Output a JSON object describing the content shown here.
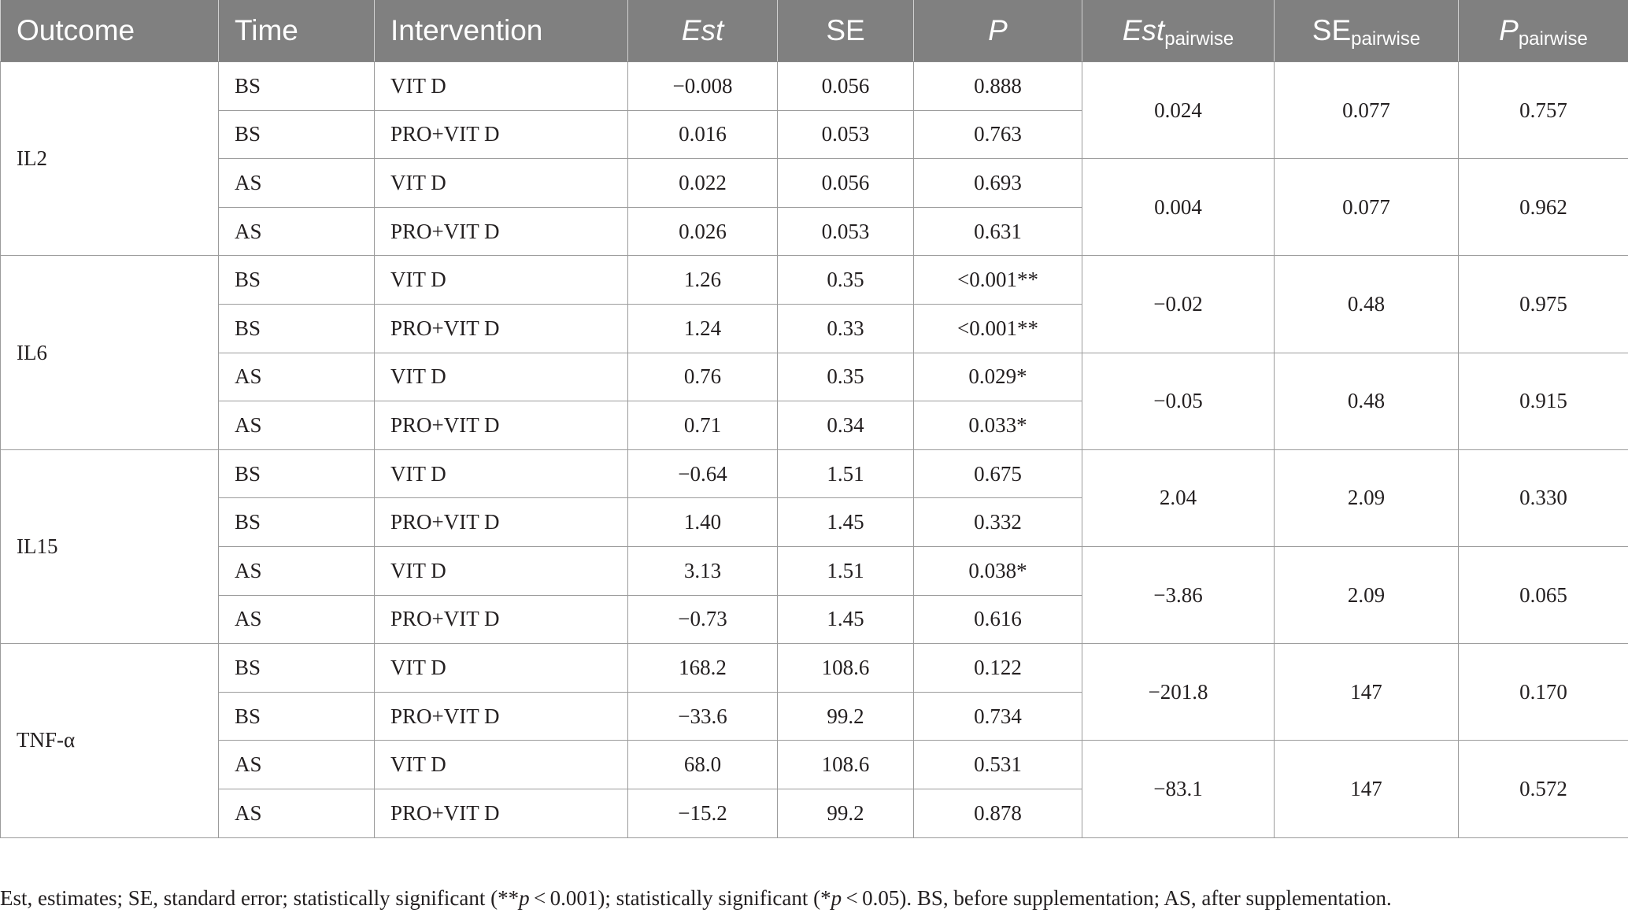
{
  "table": {
    "headers": {
      "outcome": "Outcome",
      "time": "Time",
      "intervention": "Intervention",
      "est": "Est",
      "se": "SE",
      "p": "P",
      "est_pairwise_main": "Est",
      "est_pairwise_sub": "pairwise",
      "se_pairwise_main": "SE",
      "se_pairwise_sub": "pairwise",
      "p_pairwise_main": "P",
      "p_pairwise_sub": "pairwise"
    },
    "groups": [
      {
        "outcome": "IL2",
        "rows": [
          {
            "time": "BS",
            "intervention": "VIT D",
            "est": "−0.008",
            "se": "0.056",
            "p": "0.888"
          },
          {
            "time": "BS",
            "intervention": "PRO+VIT D",
            "est": "0.016",
            "se": "0.053",
            "p": "0.763"
          },
          {
            "time": "AS",
            "intervention": "VIT D",
            "est": "0.022",
            "se": "0.056",
            "p": "0.693"
          },
          {
            "time": "AS",
            "intervention": "PRO+VIT D",
            "est": "0.026",
            "se": "0.053",
            "p": "0.631"
          }
        ],
        "pairwise": [
          {
            "est": "0.024",
            "se": "0.077",
            "p": "0.757"
          },
          {
            "est": "0.004",
            "se": "0.077",
            "p": "0.962"
          }
        ]
      },
      {
        "outcome": "IL6",
        "rows": [
          {
            "time": "BS",
            "intervention": "VIT D",
            "est": "1.26",
            "se": "0.35",
            "p": "<0.001**"
          },
          {
            "time": "BS",
            "intervention": "PRO+VIT D",
            "est": "1.24",
            "se": "0.33",
            "p": "<0.001**"
          },
          {
            "time": "AS",
            "intervention": "VIT D",
            "est": "0.76",
            "se": "0.35",
            "p": "0.029*"
          },
          {
            "time": "AS",
            "intervention": "PRO+VIT D",
            "est": "0.71",
            "se": "0.34",
            "p": "0.033*"
          }
        ],
        "pairwise": [
          {
            "est": "−0.02",
            "se": "0.48",
            "p": "0.975"
          },
          {
            "est": "−0.05",
            "se": "0.48",
            "p": "0.915"
          }
        ]
      },
      {
        "outcome": "IL15",
        "rows": [
          {
            "time": "BS",
            "intervention": "VIT D",
            "est": "−0.64",
            "se": "1.51",
            "p": "0.675"
          },
          {
            "time": "BS",
            "intervention": "PRO+VIT D",
            "est": "1.40",
            "se": "1.45",
            "p": "0.332"
          },
          {
            "time": "AS",
            "intervention": "VIT D",
            "est": "3.13",
            "se": "1.51",
            "p": "0.038*"
          },
          {
            "time": "AS",
            "intervention": "PRO+VIT D",
            "est": "−0.73",
            "se": "1.45",
            "p": "0.616"
          }
        ],
        "pairwise": [
          {
            "est": "2.04",
            "se": "2.09",
            "p": "0.330"
          },
          {
            "est": "−3.86",
            "se": "2.09",
            "p": "0.065"
          }
        ]
      },
      {
        "outcome": "TNF-α",
        "rows": [
          {
            "time": "BS",
            "intervention": "VIT D",
            "est": "168.2",
            "se": "108.6",
            "p": "0.122"
          },
          {
            "time": "BS",
            "intervention": "PRO+VIT D",
            "est": "−33.6",
            "se": "99.2",
            "p": "0.734"
          },
          {
            "time": "AS",
            "intervention": "VIT D",
            "est": "68.0",
            "se": "108.6",
            "p": "0.531"
          },
          {
            "time": "AS",
            "intervention": "PRO+VIT D",
            "est": "−15.2",
            "se": "99.2",
            "p": "0.878"
          }
        ],
        "pairwise": [
          {
            "est": "−201.8",
            "se": "147",
            "p": "0.170"
          },
          {
            "est": "−83.1",
            "se": "147",
            "p": "0.572"
          }
        ]
      }
    ]
  },
  "footnote": {
    "part1": "Est, estimates; SE, standard error; statistically significant (**",
    "p1": "p",
    "part2": " < 0.001); statistically significant (*",
    "p2": "p",
    "part3": " < 0.05). BS, before supplementation; AS, after supplementation."
  }
}
